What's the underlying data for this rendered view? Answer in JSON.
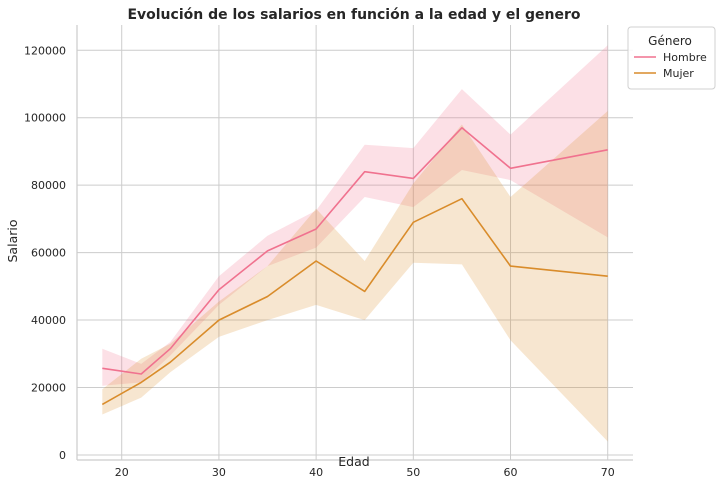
{
  "chart_data": {
    "type": "line",
    "title": "Evolución de los salarios en función a la edad y el genero",
    "xlabel": "Edad",
    "ylabel": "Salario",
    "xlim": [
      15.4,
      72.6
    ],
    "ylim": [
      -1500,
      127500
    ],
    "xticks": [
      20,
      30,
      40,
      50,
      60,
      70
    ],
    "yticks": [
      0,
      20000,
      40000,
      60000,
      80000,
      100000,
      120000
    ],
    "grid": true,
    "legend": {
      "title": "Género",
      "placement": "top-right-outside"
    },
    "series": [
      {
        "name": "Hombre",
        "color": "#f0728f",
        "x": [
          18,
          22,
          25,
          30,
          35,
          40,
          45,
          50,
          55,
          60,
          70
        ],
        "y": [
          25700,
          24000,
          31500,
          49000,
          60500,
          67000,
          84000,
          82000,
          97000,
          85000,
          90500
        ],
        "ci_low": [
          20500,
          21500,
          29500,
          44500,
          56000,
          61500,
          76500,
          73500,
          84500,
          81500,
          64500
        ],
        "ci_high": [
          31500,
          27000,
          33500,
          53000,
          65000,
          72500,
          92000,
          91000,
          108500,
          95000,
          121500
        ]
      },
      {
        "name": "Mujer",
        "color": "#d98c2b",
        "x": [
          18,
          22,
          25,
          30,
          35,
          40,
          45,
          50,
          55,
          60,
          70
        ],
        "y": [
          15000,
          21500,
          27500,
          40000,
          47000,
          57500,
          48500,
          69000,
          76000,
          56000,
          53000
        ],
        "ci_low": [
          12000,
          17000,
          24500,
          35000,
          40000,
          44500,
          40000,
          57000,
          56500,
          34000,
          4000
        ],
        "ci_high": [
          19500,
          28500,
          33000,
          45500,
          56000,
          73000,
          57500,
          80500,
          98000,
          76500,
          102000
        ]
      }
    ]
  }
}
